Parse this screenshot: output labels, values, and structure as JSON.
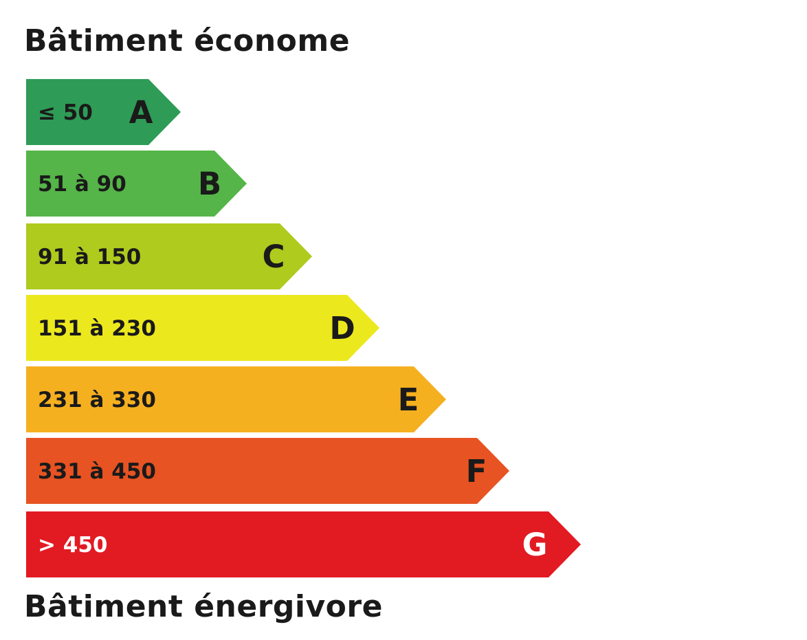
{
  "headings": {
    "top": "Bâtiment économe",
    "bottom": "Bâtiment énergivore"
  },
  "energy_scale": {
    "classes": [
      {
        "letter": "A",
        "range": "≤ 50",
        "color": "#2e9c56",
        "text_color": "#1a1a1a"
      },
      {
        "letter": "B",
        "range": "51 à 90",
        "color": "#55b548",
        "text_color": "#1a1a1a"
      },
      {
        "letter": "C",
        "range": "91 à 150",
        "color": "#aecb1e",
        "text_color": "#1a1a1a"
      },
      {
        "letter": "D",
        "range": "151 à 230",
        "color": "#ece81e",
        "text_color": "#1a1a1a"
      },
      {
        "letter": "E",
        "range": "231 à 330",
        "color": "#f5b020",
        "text_color": "#1a1a1a"
      },
      {
        "letter": "F",
        "range": "331 à 450",
        "color": "#e75322",
        "text_color": "#1a1a1a"
      },
      {
        "letter": "G",
        "range": "> 450",
        "color": "#e21a22",
        "text_color": "#ffffff"
      }
    ]
  }
}
